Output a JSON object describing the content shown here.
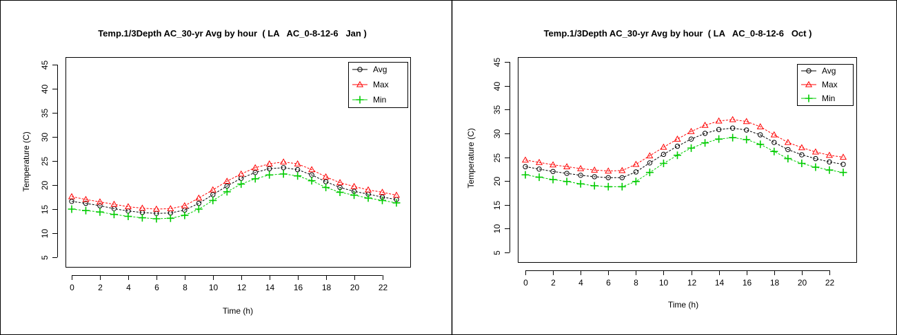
{
  "colors": {
    "avg": "#000000",
    "max": "#ff0000",
    "min": "#00cc00"
  },
  "chart_data": [
    {
      "type": "line",
      "title": "Temp.1/3Depth AC_30-yr Avg by hour  ( LA   AC_0-8-12-6   Jan )",
      "xlabel": "Time (h)",
      "ylabel": "Temperature (C)",
      "xlim": [
        0,
        23
      ],
      "ylim": [
        5,
        45
      ],
      "x_ticks": [
        0,
        2,
        4,
        6,
        8,
        10,
        12,
        14,
        16,
        18,
        20,
        22
      ],
      "y_ticks": [
        5,
        10,
        15,
        20,
        25,
        30,
        35,
        40,
        45
      ],
      "grid": false,
      "legend_position": "top-right",
      "x": [
        0,
        1,
        2,
        3,
        4,
        5,
        6,
        7,
        8,
        9,
        10,
        11,
        12,
        13,
        14,
        15,
        16,
        17,
        18,
        19,
        20,
        21,
        22,
        23
      ],
      "series": [
        {
          "name": "Avg",
          "marker": "circle",
          "values": [
            16.6,
            16.2,
            15.7,
            15.1,
            14.6,
            14.3,
            14.1,
            14.2,
            14.8,
            16.2,
            18.0,
            19.8,
            21.4,
            22.6,
            23.4,
            23.6,
            23.2,
            22.1,
            20.7,
            19.5,
            18.7,
            18.1,
            17.5,
            17.0
          ]
        },
        {
          "name": "Max",
          "marker": "triangle",
          "values": [
            17.6,
            17.0,
            16.5,
            16.0,
            15.5,
            15.2,
            15.0,
            15.1,
            15.7,
            17.3,
            19.0,
            20.8,
            22.3,
            23.6,
            24.4,
            24.8,
            24.4,
            23.2,
            21.7,
            20.5,
            19.7,
            19.0,
            18.5,
            17.9
          ]
        },
        {
          "name": "Min",
          "marker": "plus",
          "values": [
            15.0,
            14.7,
            14.4,
            13.9,
            13.5,
            13.2,
            13.0,
            13.1,
            13.7,
            15.0,
            16.8,
            18.6,
            20.2,
            21.3,
            22.1,
            22.3,
            21.9,
            20.9,
            19.5,
            18.5,
            17.9,
            17.3,
            16.8,
            16.3
          ]
        }
      ]
    },
    {
      "type": "line",
      "title": "Temp.1/3Depth AC_30-yr Avg by hour  ( LA   AC_0-8-12-6   Oct )",
      "xlabel": "Time (h)",
      "ylabel": "Temperature (C)",
      "xlim": [
        0,
        23
      ],
      "ylim": [
        5,
        45
      ],
      "x_ticks": [
        0,
        2,
        4,
        6,
        8,
        10,
        12,
        14,
        16,
        18,
        20,
        22
      ],
      "y_ticks": [
        5,
        10,
        15,
        20,
        25,
        30,
        35,
        40,
        45
      ],
      "grid": false,
      "legend_position": "top-right",
      "x": [
        0,
        1,
        2,
        3,
        4,
        5,
        6,
        7,
        8,
        9,
        10,
        11,
        12,
        13,
        14,
        15,
        16,
        17,
        18,
        19,
        20,
        21,
        22,
        23
      ],
      "series": [
        {
          "name": "Avg",
          "marker": "circle",
          "values": [
            23.0,
            22.5,
            22.0,
            21.6,
            21.2,
            20.9,
            20.7,
            20.7,
            21.9,
            23.8,
            25.6,
            27.3,
            28.8,
            30.0,
            30.8,
            31.1,
            30.7,
            29.7,
            28.1,
            26.6,
            25.5,
            24.7,
            24.0,
            23.5
          ]
        },
        {
          "name": "Max",
          "marker": "triangle",
          "values": [
            24.4,
            23.9,
            23.4,
            23.0,
            22.6,
            22.3,
            22.1,
            22.2,
            23.5,
            25.3,
            27.1,
            28.8,
            30.4,
            31.7,
            32.6,
            32.9,
            32.5,
            31.4,
            29.7,
            28.1,
            27.0,
            26.1,
            25.4,
            25.0
          ]
        },
        {
          "name": "Min",
          "marker": "plus",
          "values": [
            21.3,
            20.8,
            20.3,
            19.9,
            19.4,
            19.0,
            18.8,
            18.8,
            19.9,
            21.8,
            23.7,
            25.4,
            26.9,
            28.0,
            28.8,
            29.1,
            28.7,
            27.7,
            26.2,
            24.7,
            23.7,
            22.9,
            22.3,
            21.8
          ]
        }
      ]
    }
  ]
}
